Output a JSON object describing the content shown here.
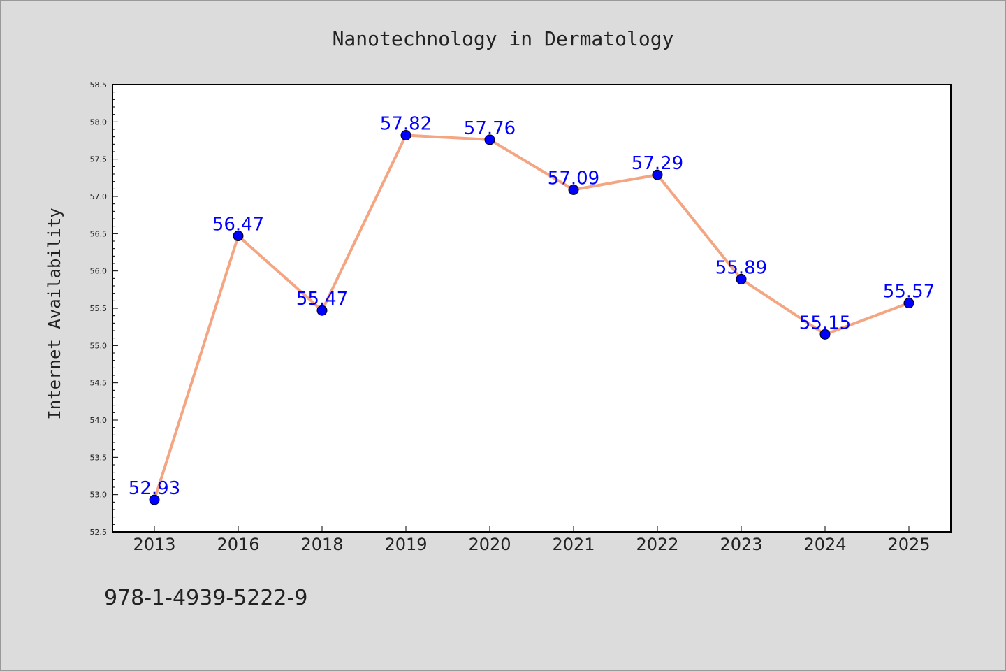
{
  "chart_data": {
    "type": "line",
    "title": "Nanotechnology in Dermatology",
    "xlabel": "",
    "ylabel": "Internet Availability",
    "categories": [
      "2013",
      "2016",
      "2018",
      "2019",
      "2020",
      "2021",
      "2022",
      "2023",
      "2024",
      "2025"
    ],
    "series": [
      {
        "values": [
          52.93,
          56.47,
          55.47,
          57.82,
          57.76,
          57.09,
          57.29,
          55.89,
          55.15,
          55.57
        ]
      }
    ],
    "data_labels": [
      "52.93",
      "56.47",
      "55.47",
      "57.82",
      "57.76",
      "57.09",
      "57.29",
      "55.89",
      "55.15",
      "55.57"
    ],
    "ylim": [
      52.5,
      58.5
    ],
    "yticks": [
      52.5,
      53.0,
      53.5,
      54.0,
      54.5,
      55.0,
      55.5,
      56.0,
      56.5,
      57.0,
      57.5,
      58.0,
      58.5
    ],
    "ytick_labels": [
      "52.5",
      "53.0",
      "53.5",
      "54.0",
      "54.5",
      "55.0",
      "55.5",
      "56.0",
      "56.5",
      "57.0",
      "57.5",
      "58.0",
      "58.5"
    ],
    "grid": false,
    "legend": "none",
    "colors": {
      "line": "#f4a582",
      "marker": "#0000ff",
      "label": "#0000ff",
      "background": "#dcdcdc",
      "plot_background": "#ffffff"
    }
  },
  "footer": {
    "isbn": "978-1-4939-5222-9"
  }
}
